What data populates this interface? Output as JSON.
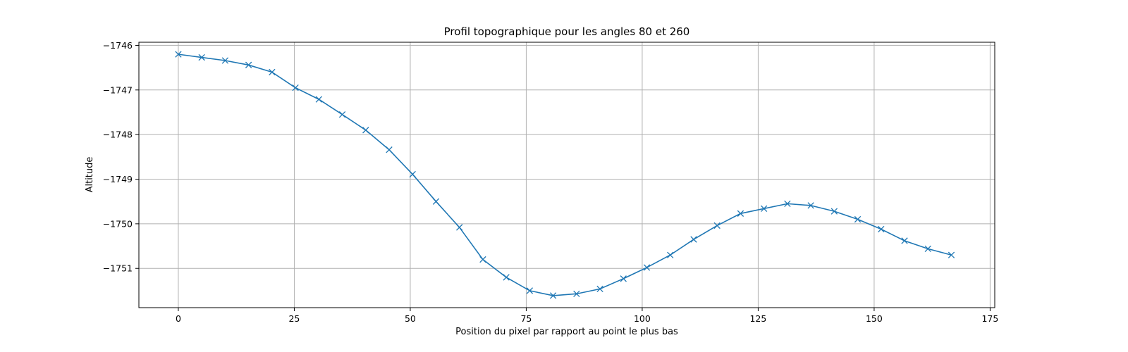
{
  "chart_data": {
    "type": "line",
    "title": "Profil topographique pour les angles 80 et 260",
    "xlabel": "Position du pixel par rapport au point le plus bas",
    "ylabel": "Altitude",
    "xlim": [
      -8.5,
      176
    ],
    "ylim": [
      -1751.88,
      -1745.93
    ],
    "xticks": [
      0,
      25,
      50,
      75,
      100,
      125,
      150,
      175
    ],
    "yticks": [
      -1746,
      -1747,
      -1748,
      -1749,
      -1750,
      -1751
    ],
    "grid": true,
    "marker": "x",
    "color": "#1f77b4",
    "series": [
      {
        "x": [
          0,
          5.05,
          10.1,
          15.15,
          20.2,
          25.25,
          30.3,
          35.35,
          40.4,
          45.45,
          50.5,
          55.55,
          60.6,
          65.65,
          70.7,
          75.75,
          80.8,
          85.85,
          90.9,
          95.95,
          101.0,
          106.05,
          111.1,
          116.15,
          121.2,
          126.25,
          131.3,
          136.35,
          141.4,
          146.45,
          151.5,
          156.55,
          161.6,
          166.65
        ],
        "y": [
          -1746.2,
          -1746.27,
          -1746.34,
          -1746.44,
          -1746.6,
          -1746.95,
          -1747.21,
          -1747.55,
          -1747.9,
          -1748.34,
          -1748.89,
          -1749.5,
          -1750.08,
          -1750.8,
          -1751.2,
          -1751.5,
          -1751.61,
          -1751.57,
          -1751.46,
          -1751.23,
          -1750.98,
          -1750.7,
          -1750.35,
          -1750.04,
          -1749.77,
          -1749.66,
          -1749.55,
          -1749.59,
          -1749.72,
          -1749.9,
          -1750.12,
          -1750.38,
          -1750.56,
          -1750.7
        ]
      }
    ]
  }
}
